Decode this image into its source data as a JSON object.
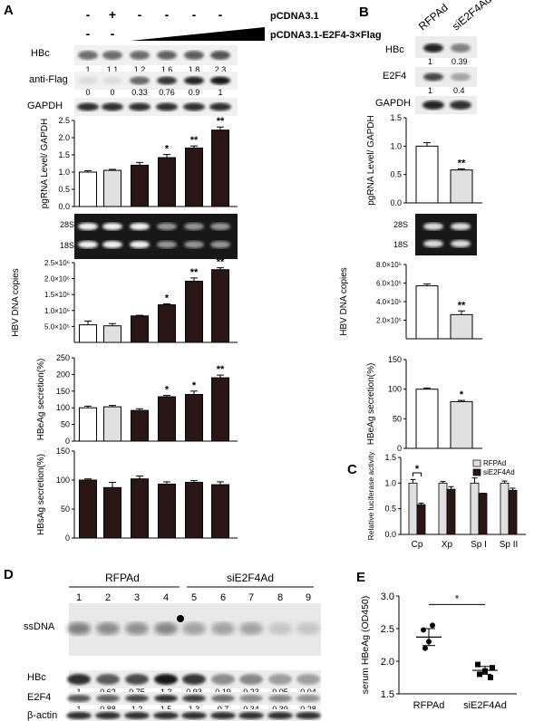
{
  "colors": {
    "dark": "#2b1616",
    "light": "#e0e0e0",
    "white": "#ffffff",
    "blot_bg": "#f0f0f0"
  },
  "panelA": {
    "letter": "A",
    "row1": [
      "-",
      "+",
      "-",
      "-",
      "-",
      "-"
    ],
    "row2": [
      "-",
      "-"
    ],
    "label1": "pCDNA3.1",
    "label2": "pCDNA3.1-E2F4-3×Flag",
    "blots": {
      "hbc": "HBc",
      "flag": "anti-Flag",
      "gapdh": "GAPDH"
    },
    "hbc_vals": [
      "1",
      "1.1",
      "1.2",
      "1.6",
      "1.8",
      "2.3"
    ],
    "flag_vals": [
      "0",
      "0",
      "0.33",
      "0.76",
      "0.9",
      "1"
    ],
    "gel_28s": "28S",
    "gel_18s": "18S"
  },
  "chart_data": [
    {
      "id": "A_pg",
      "type": "bar",
      "ylabel": "pgRNA Level/ GAPDH",
      "ylim": [
        0,
        2.5
      ],
      "yticks": [
        "0.0",
        "0.5",
        "1.0",
        "1.5",
        "2.0",
        "2.5"
      ],
      "values": [
        1.0,
        1.05,
        1.2,
        1.42,
        1.7,
        2.22
      ],
      "err": [
        0.04,
        0.03,
        0.08,
        0.09,
        0.06,
        0.09
      ],
      "sig": [
        "",
        "",
        "",
        "*",
        "**",
        "**"
      ],
      "fill": [
        "w",
        "l",
        "d",
        "d",
        "d",
        "d"
      ]
    },
    {
      "id": "A_dna",
      "type": "bar",
      "ylabel": "HBV DNA copies",
      "ylim": [
        0,
        2500000
      ],
      "yticks": [
        "5.0×10⁵",
        "1.0×10⁶",
        "1.5×10⁶",
        "2.0×10⁶",
        "2.5×10⁶"
      ],
      "values": [
        550000,
        520000,
        830000,
        1180000,
        1920000,
        2280000
      ],
      "err": [
        120000,
        70000,
        20000,
        30000,
        100000,
        60000
      ],
      "sig": [
        "",
        "",
        "",
        "*",
        "**",
        "**"
      ],
      "fill": [
        "w",
        "l",
        "d",
        "d",
        "d",
        "d"
      ]
    },
    {
      "id": "A_hbeag",
      "type": "bar",
      "ylabel": "HBeAg secretion(%)",
      "ylim": [
        0,
        250
      ],
      "yticks": [
        "0",
        "50",
        "100",
        "150",
        "200",
        "250"
      ],
      "values": [
        100,
        103,
        92,
        133,
        140,
        190
      ],
      "err": [
        5,
        4,
        5,
        4,
        10,
        8
      ],
      "sig": [
        "",
        "",
        "",
        "*",
        "*",
        "**"
      ],
      "fill": [
        "w",
        "l",
        "d",
        "d",
        "d",
        "d"
      ]
    },
    {
      "id": "A_hbsag",
      "type": "bar",
      "ylabel": "HBsAg secretion(%)",
      "ylim": [
        0,
        150
      ],
      "yticks": [
        "0",
        "50",
        "100",
        "150"
      ],
      "values": [
        100,
        87,
        102,
        93,
        96,
        92
      ],
      "err": [
        2,
        9,
        5,
        4,
        3,
        5
      ],
      "sig": [
        "",
        "",
        "",
        "",
        "",
        ""
      ],
      "fill": [
        "d",
        "d",
        "d",
        "d",
        "d",
        "d"
      ]
    },
    {
      "id": "B_pg",
      "type": "bar",
      "ylabel": "pgRNA Level/ GAPDH",
      "ylim": [
        0,
        1.5
      ],
      "yticks": [
        "0.0",
        "0.5",
        "1.0",
        "1.5"
      ],
      "values": [
        1.0,
        0.58
      ],
      "err": [
        0.06,
        0.02
      ],
      "sig": [
        "",
        "**"
      ],
      "fill": [
        "w",
        "l"
      ]
    },
    {
      "id": "B_dna",
      "type": "bar",
      "ylabel": "HBV DNA copies",
      "ylim": [
        0,
        800000
      ],
      "yticks": [
        "2.0×10⁵",
        "4.0×10⁵",
        "6.0×10⁵",
        "8.0×10⁵"
      ],
      "values": [
        570000,
        260000
      ],
      "err": [
        20000,
        40000
      ],
      "sig": [
        "",
        "**"
      ],
      "fill": [
        "w",
        "l"
      ]
    },
    {
      "id": "B_hbeag",
      "type": "bar",
      "ylabel": "HBeAg secretion(%)",
      "ylim": [
        0,
        150
      ],
      "yticks": [
        "0",
        "50",
        "100",
        "150"
      ],
      "values": [
        100,
        79
      ],
      "err": [
        2,
        2
      ],
      "sig": [
        "",
        "*"
      ],
      "fill": [
        "w",
        "l"
      ]
    },
    {
      "id": "C",
      "type": "bar",
      "ylabel": "Relative luciferase activity",
      "ylim": [
        0,
        1.5
      ],
      "yticks": [
        "0.0",
        "0.5",
        "1.0",
        "1.5"
      ],
      "categories": [
        "Cp",
        "Xp",
        "Sp I",
        "Sp II"
      ],
      "series": [
        {
          "name": "RFPAd",
          "values": [
            1.0,
            1.0,
            1.0,
            1.0
          ],
          "err": [
            0.07,
            0.03,
            0.1,
            0.04
          ]
        },
        {
          "name": "siE2F4Ad",
          "values": [
            0.58,
            0.88,
            0.8,
            0.86
          ],
          "err": [
            0.03,
            0.05,
            0.0,
            0.04
          ]
        }
      ],
      "sig": "*",
      "legend": "top-right"
    },
    {
      "id": "E",
      "type": "scatter",
      "ylabel": "serum HBeAg (OD450)",
      "ylim": [
        1.5,
        3.0
      ],
      "yticks": [
        "1.5",
        "2.0",
        "2.5",
        "3.0"
      ],
      "categories": [
        "RFPAd",
        "siE2F4Ad"
      ],
      "points": [
        [
          2.55,
          2.48,
          2.3,
          2.2
        ],
        [
          1.95,
          1.9,
          1.85,
          1.8,
          1.75
        ]
      ],
      "mean": [
        2.37,
        1.86
      ],
      "sem": [
        0.13,
        0.06
      ],
      "sig": "*"
    }
  ],
  "panelB": {
    "letter": "B",
    "lanes": [
      "RFPAd",
      "siE2F4Ad"
    ],
    "hbc": "HBc",
    "e2f4": "E2F4",
    "gapdh": "GAPDH",
    "hbc_vals": [
      "1",
      "0.39"
    ],
    "e2f4_vals": [
      "1",
      "0.4"
    ],
    "gel_28s": "28S",
    "gel_18s": "18S"
  },
  "panelC": {
    "letter": "C"
  },
  "panelD": {
    "letter": "D",
    "group1": "RFPAd",
    "group2": "siE2F4Ad",
    "lanes": [
      "1",
      "2",
      "3",
      "4",
      "5",
      "6",
      "7",
      "8",
      "9"
    ],
    "ssdna": "ssDNA",
    "hbc": "HBc",
    "e2f4": "E2F4",
    "actin": "β-actin",
    "hbc_vals": [
      "1",
      "0.62",
      "0.75",
      "1.2",
      "0.93",
      "0.19",
      "0.23",
      "0.05",
      "0.04"
    ],
    "e2f4_vals": [
      "1",
      "0.88",
      "1.2",
      "1.5",
      "1.3",
      "0.7",
      "0.34",
      "0.39",
      "0.28"
    ]
  },
  "panelE": {
    "letter": "E"
  }
}
